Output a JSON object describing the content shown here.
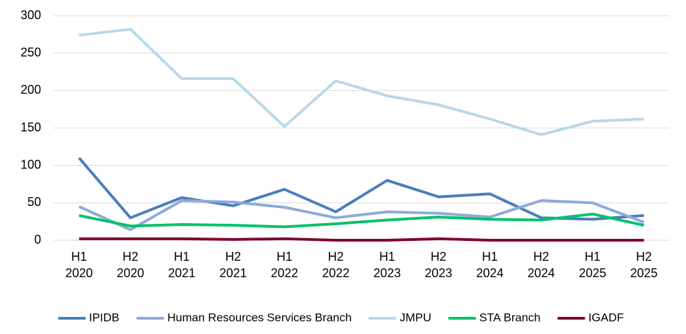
{
  "chart_data": {
    "type": "line",
    "categories": [
      [
        "H1",
        "2020"
      ],
      [
        "H2",
        "2020"
      ],
      [
        "H1",
        "2021"
      ],
      [
        "H2",
        "2021"
      ],
      [
        "H1",
        "2022"
      ],
      [
        "H2",
        "2022"
      ],
      [
        "H1",
        "2023"
      ],
      [
        "H2",
        "2023"
      ],
      [
        "H1",
        "2024"
      ],
      [
        "H2",
        "2024"
      ],
      [
        "H1",
        "2025"
      ],
      [
        "H2",
        "2025"
      ]
    ],
    "series": [
      {
        "name": "IPIDB",
        "color": "#4a7ebb",
        "values": [
          110,
          30,
          57,
          46,
          68,
          38,
          80,
          58,
          62,
          30,
          28,
          33
        ]
      },
      {
        "name": "Human Resources Services Branch",
        "color": "#8eaadb",
        "values": [
          45,
          14,
          53,
          51,
          44,
          30,
          38,
          36,
          31,
          53,
          50,
          24
        ]
      },
      {
        "name": "JMPU",
        "color": "#b9d7ea",
        "values": [
          274,
          282,
          216,
          216,
          152,
          213,
          193,
          181,
          162,
          141,
          159,
          162
        ]
      },
      {
        "name": "STA Branch",
        "color": "#00c26a",
        "values": [
          33,
          19,
          21,
          20,
          18,
          22,
          27,
          31,
          28,
          27,
          35,
          20
        ]
      },
      {
        "name": "IGADF",
        "color": "#7f0032",
        "values": [
          2,
          2,
          2,
          1,
          2,
          0,
          0,
          2,
          0,
          0,
          0,
          0
        ]
      }
    ],
    "ylim": [
      0,
      300
    ],
    "yticks": [
      0,
      50,
      100,
      150,
      200,
      250,
      300
    ],
    "grid": true,
    "legend": "bottom"
  }
}
